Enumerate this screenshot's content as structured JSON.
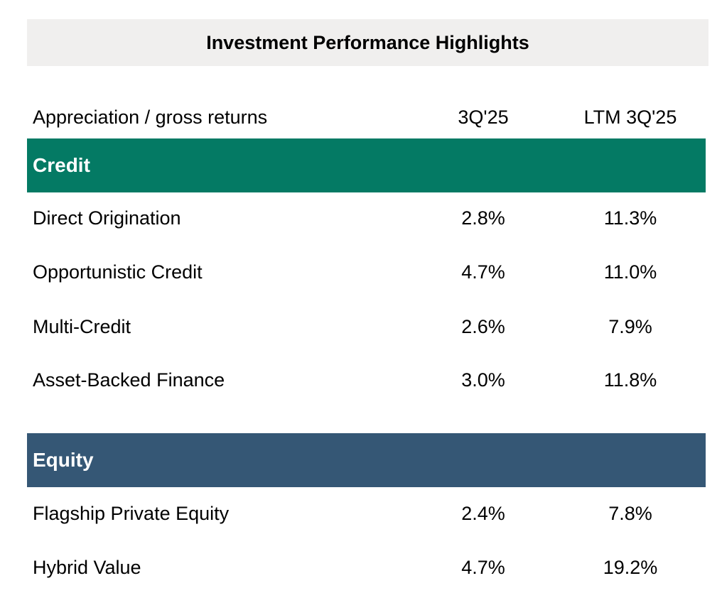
{
  "header": {
    "title": "Investment Performance Highlights"
  },
  "columns": {
    "label": "Appreciation / gross returns",
    "col1": "3Q'25",
    "col2": "LTM 3Q'25"
  },
  "colors": {
    "credit": "#047a64",
    "equity": "#355775",
    "title_bg": "#f0efee"
  },
  "sections": [
    {
      "name": "Credit",
      "rows": [
        {
          "label": "Direct Origination",
          "q": "2.8%",
          "ltm": "11.3%"
        },
        {
          "label": "Opportunistic Credit",
          "q": "4.7%",
          "ltm": "11.0%"
        },
        {
          "label": "Multi-Credit",
          "q": "2.6%",
          "ltm": "7.9%"
        },
        {
          "label": "Asset-Backed Finance",
          "q": "3.0%",
          "ltm": "11.8%"
        }
      ]
    },
    {
      "name": "Equity",
      "rows": [
        {
          "label": "Flagship Private Equity",
          "q": "2.4%",
          "ltm": "7.8%"
        },
        {
          "label": "Hybrid Value",
          "q": "4.7%",
          "ltm": "19.2%"
        }
      ]
    }
  ]
}
